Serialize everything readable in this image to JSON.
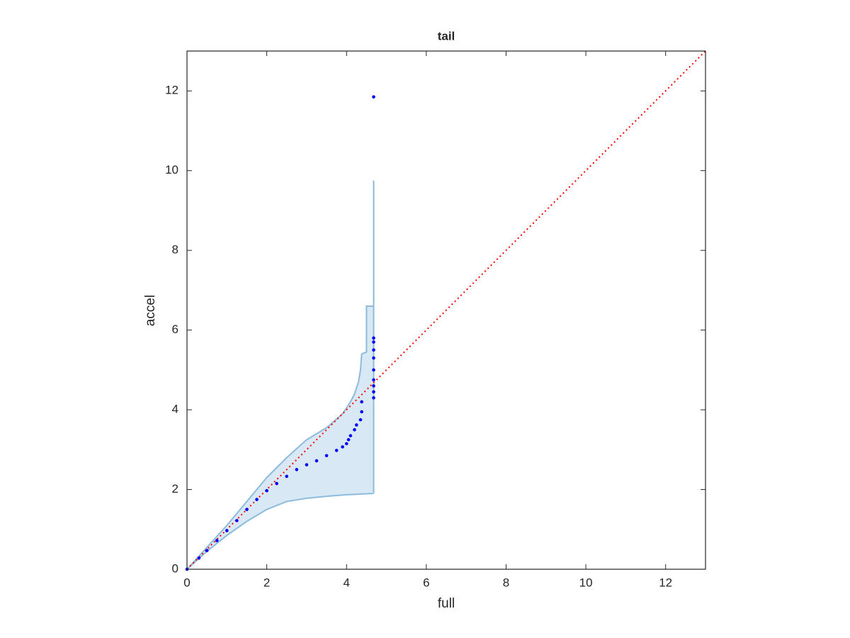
{
  "chart_data": {
    "type": "scatter",
    "title": "tail",
    "x_label": "full",
    "y_label": "accel",
    "xlim": [
      0,
      13
    ],
    "ylim": [
      0,
      13
    ],
    "xticks": [
      0,
      2,
      4,
      6,
      8,
      10,
      12
    ],
    "yticks": [
      0,
      2,
      4,
      6,
      8,
      10,
      12
    ],
    "grid": false,
    "series": [
      {
        "color": "#0000ff",
        "x": [
          0,
          0.3,
          0.5,
          0.75,
          1.0,
          1.25,
          1.5,
          1.75,
          2.0,
          2.25,
          2.5,
          2.75,
          3.0,
          3.25,
          3.5,
          3.75,
          3.9,
          4.0,
          4.05,
          4.1,
          4.2,
          4.25,
          4.35,
          4.38,
          4.38,
          4.68,
          4.68,
          4.68,
          4.68,
          4.68,
          4.68,
          4.68,
          4.68,
          4.68,
          4.68
        ],
        "values": [
          0,
          0.28,
          0.47,
          0.72,
          0.97,
          1.22,
          1.5,
          1.75,
          1.97,
          2.15,
          2.33,
          2.5,
          2.62,
          2.72,
          2.85,
          2.98,
          3.07,
          3.15,
          3.25,
          3.35,
          3.5,
          3.62,
          3.75,
          3.95,
          4.2,
          4.3,
          4.45,
          4.6,
          4.75,
          5.0,
          5.3,
          5.5,
          5.7,
          5.8,
          11.85
        ]
      }
    ],
    "band": {
      "color": "#8cbbdc",
      "fill": "#d8e8f4",
      "upper": {
        "x": [
          0,
          0.5,
          1,
          1.5,
          2,
          2.5,
          3,
          3.5,
          3.9,
          4.0,
          4.1,
          4.2,
          4.3,
          4.35,
          4.38,
          4.5,
          4.5,
          4.68,
          4.68
        ],
        "y": [
          0,
          0.55,
          1.1,
          1.7,
          2.3,
          2.8,
          3.25,
          3.55,
          3.9,
          4.05,
          4.2,
          4.4,
          4.7,
          5.0,
          5.4,
          5.45,
          6.6,
          6.6,
          9.75
        ]
      },
      "lower": {
        "x": [
          0,
          0.5,
          1,
          1.5,
          2,
          2.5,
          3,
          3.5,
          4,
          4.68
        ],
        "y": [
          0,
          0.45,
          0.85,
          1.2,
          1.5,
          1.7,
          1.78,
          1.83,
          1.87,
          1.9
        ]
      }
    },
    "reference_line": {
      "x": [
        0,
        13
      ],
      "y": [
        0,
        13
      ],
      "color": "#ff0000"
    }
  }
}
